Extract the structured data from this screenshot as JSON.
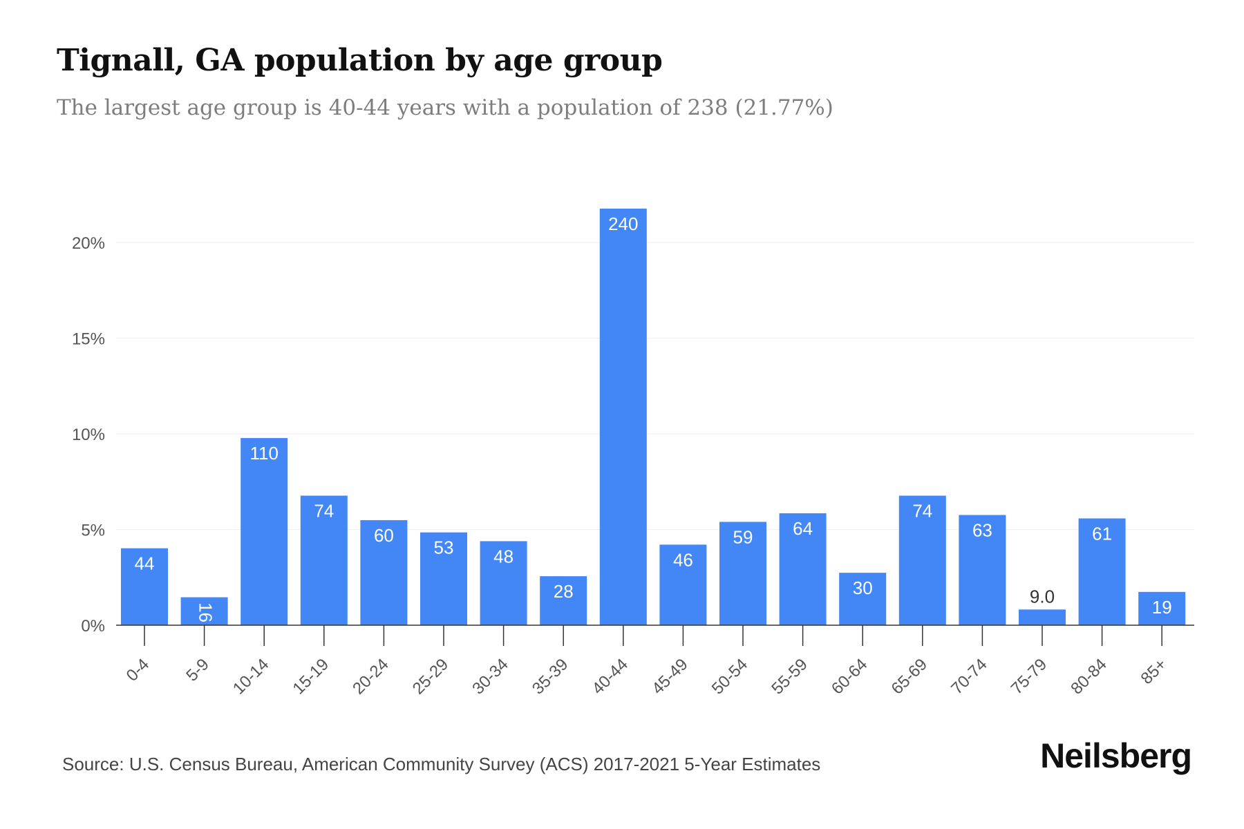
{
  "header": {
    "title": "Tignall, GA population by age group",
    "subtitle": "The largest age group is 40-44 years with a population of 238 (21.77%)"
  },
  "footer": {
    "source": "Source: U.S. Census Bureau, American Community Survey (ACS) 2017-2021 5-Year Estimates",
    "brand": "Neilsberg"
  },
  "colors": {
    "bar": "#4287f5",
    "label_inside": "#ffffff",
    "label_outside": "#333333",
    "grid": "#eeeeee",
    "axis": "#333333",
    "tick_text": "#555555"
  },
  "chart_data": {
    "type": "bar",
    "title": "",
    "xlabel": "",
    "ylabel": "",
    "ylim": [
      0,
      0.24
    ],
    "y_ticks": [
      0,
      0.05,
      0.1,
      0.15,
      0.2
    ],
    "y_tick_labels": [
      "0%",
      "5%",
      "10%",
      "15%",
      "20%"
    ],
    "grid": true,
    "categories": [
      "0-4",
      "5-9",
      "10-14",
      "15-19",
      "20-24",
      "25-29",
      "30-34",
      "35-39",
      "40-44",
      "45-49",
      "50-54",
      "55-59",
      "60-64",
      "65-69",
      "70-74",
      "75-79",
      "80-84",
      "85+"
    ],
    "values": [
      0.0402,
      0.0146,
      0.0978,
      0.0677,
      0.0549,
      0.0485,
      0.0439,
      0.0256,
      0.2177,
      0.0421,
      0.054,
      0.0585,
      0.0274,
      0.0677,
      0.0576,
      0.0082,
      0.0558,
      0.0174
    ],
    "data_labels": [
      "44",
      "16",
      "110",
      "74",
      "60",
      "53",
      "48",
      "28",
      "240",
      "46",
      "59",
      "64",
      "30",
      "74",
      "63",
      "9.0",
      "61",
      "19"
    ],
    "label_placement": [
      "inside",
      "inside-rotated",
      "inside",
      "inside",
      "inside",
      "inside",
      "inside",
      "inside",
      "inside",
      "inside",
      "inside",
      "inside",
      "inside",
      "inside",
      "inside",
      "outside",
      "inside",
      "inside"
    ]
  }
}
